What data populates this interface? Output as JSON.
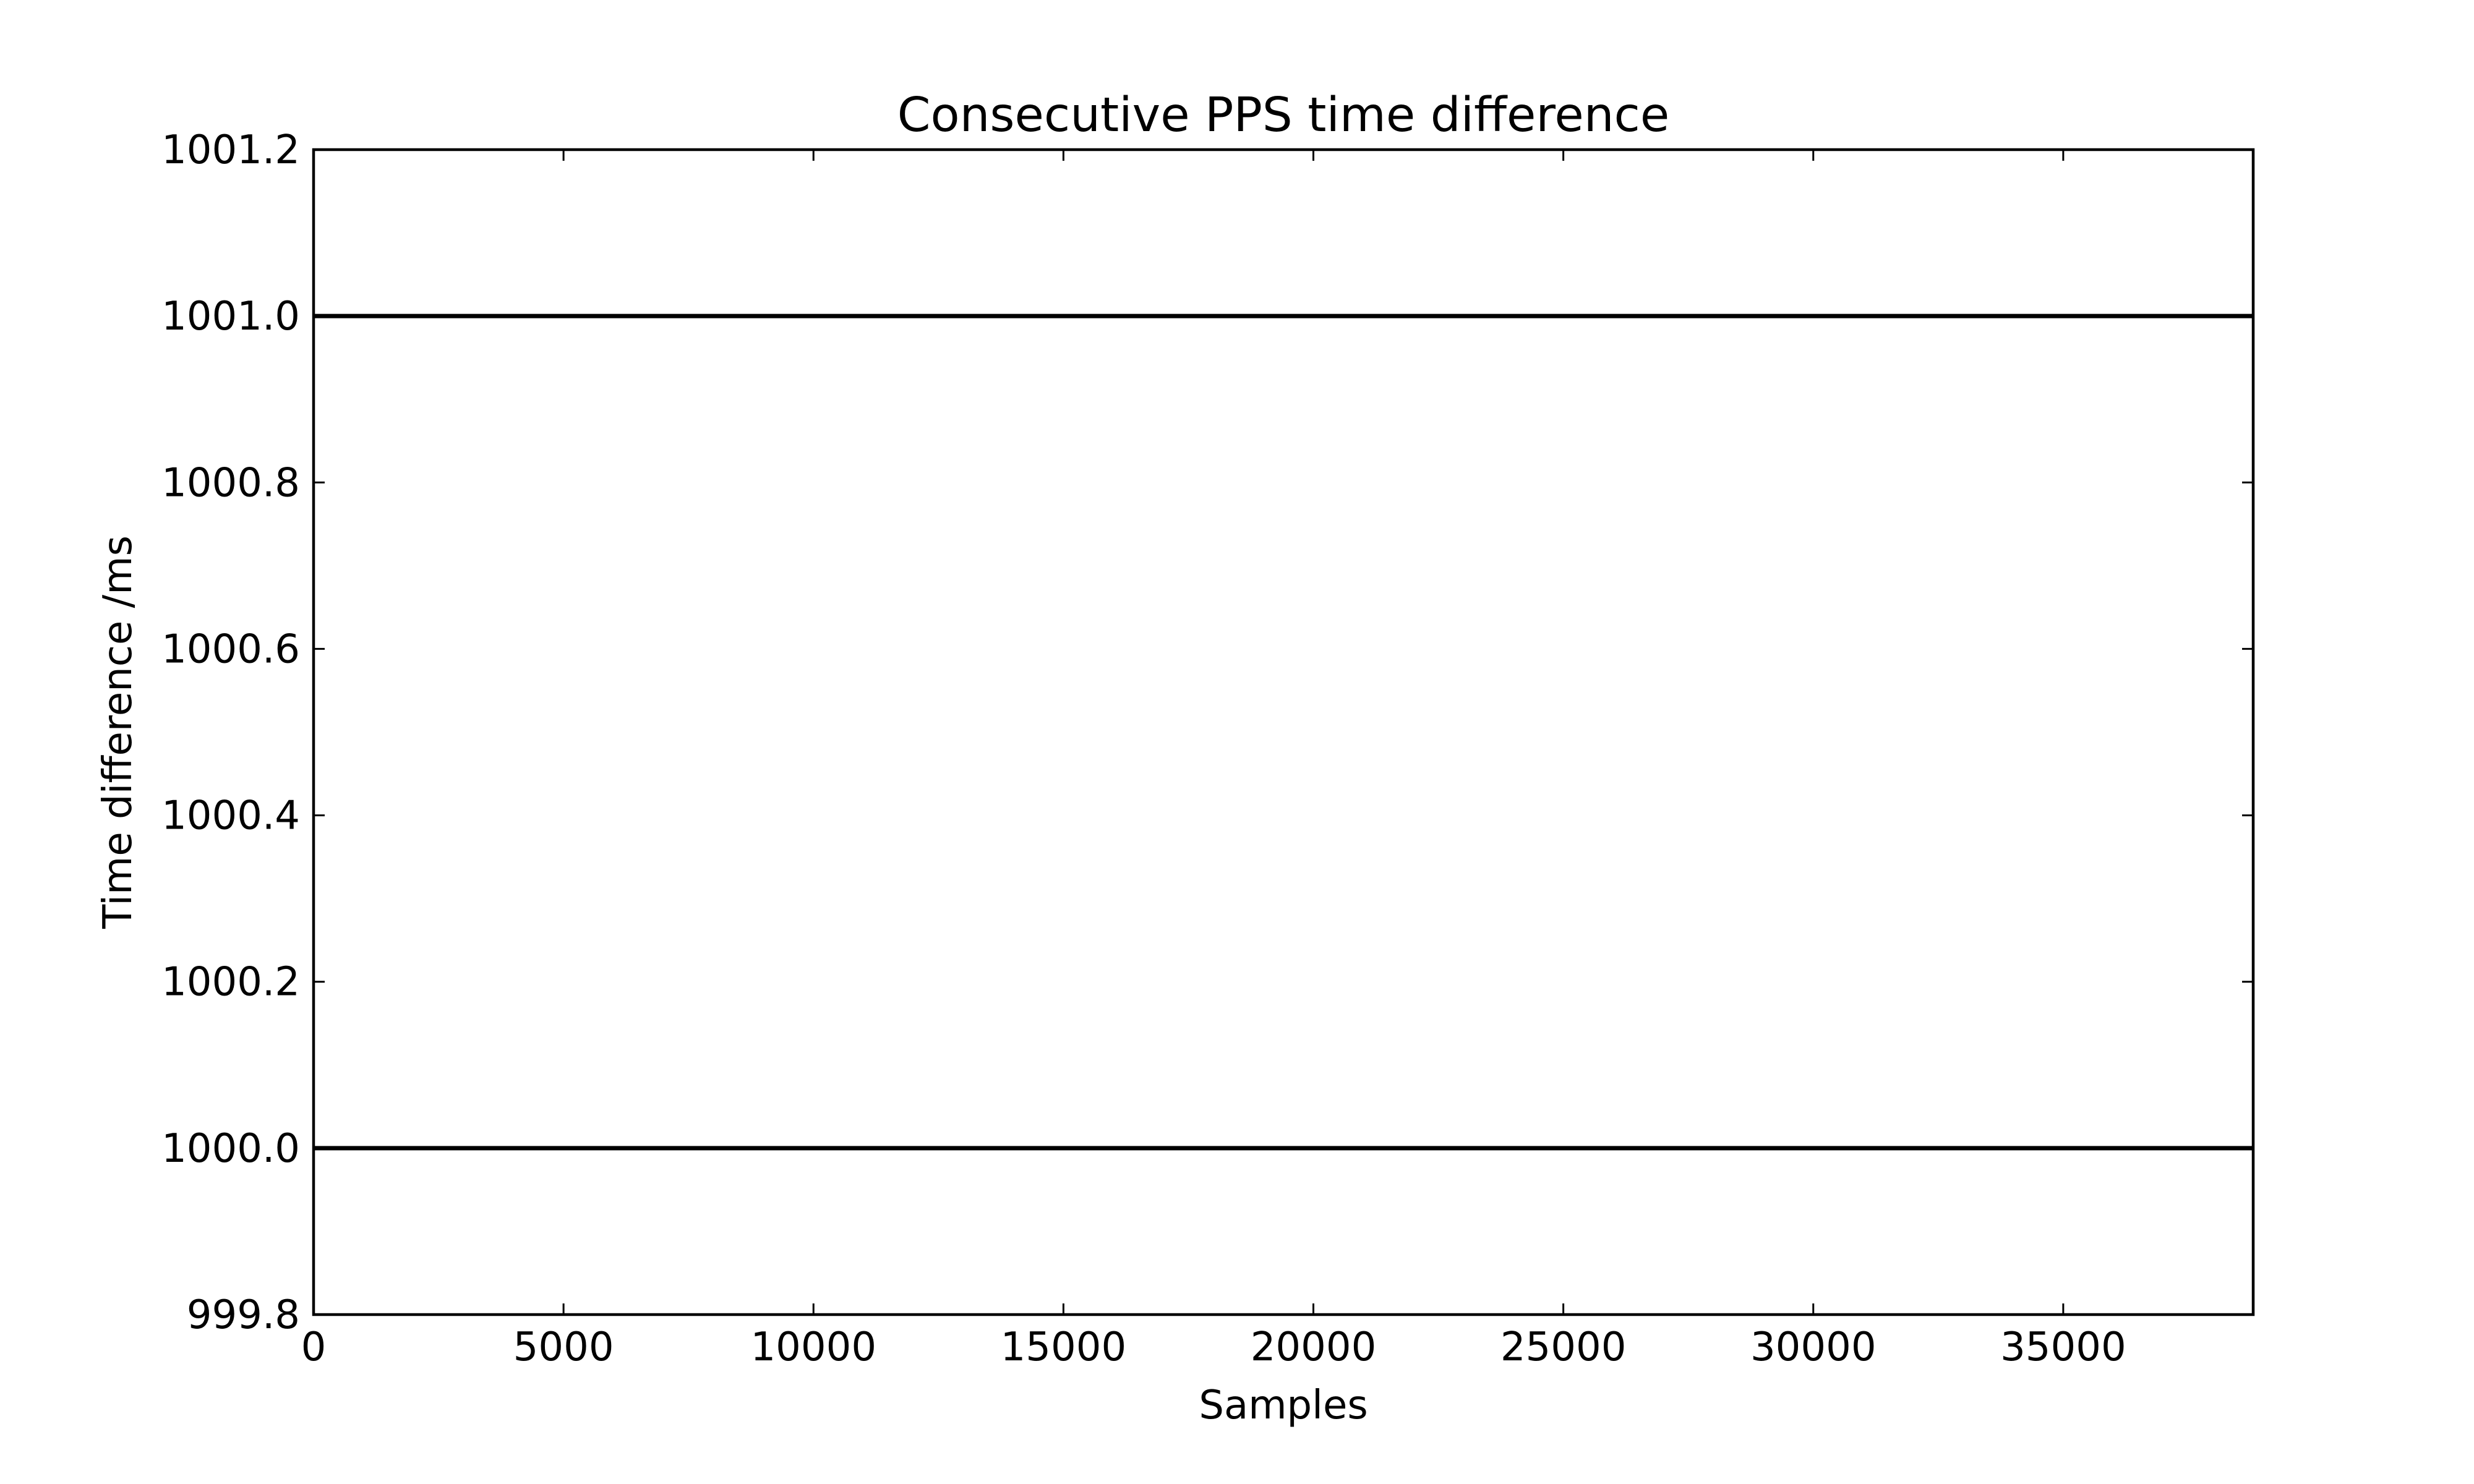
{
  "chart_data": {
    "type": "line",
    "title": "Consecutive PPS time difference",
    "xlabel": "Samples",
    "ylabel": "Time difference /ms",
    "xlim": [
      0,
      38800
    ],
    "ylim": [
      999.8,
      1001.2
    ],
    "xticks": [
      0,
      5000,
      10000,
      15000,
      20000,
      25000,
      30000,
      35000
    ],
    "xtick_labels": [
      "0",
      "5000",
      "10000",
      "15000",
      "20000",
      "25000",
      "30000",
      "35000"
    ],
    "yticks": [
      999.8,
      1000.0,
      1000.2,
      1000.4,
      1000.6,
      1000.8,
      1001.0,
      1001.2
    ],
    "ytick_labels": [
      "999.8",
      "1000.0",
      "1000.2",
      "1000.4",
      "1000.6",
      "1000.8",
      "1001.0",
      "1001.2"
    ],
    "grid": false,
    "series": [
      {
        "color": "#000000",
        "values": [
          {
            "x": 0,
            "y": 1000.0
          },
          {
            "x": 38800,
            "y": 1000.0
          },
          {
            "x": 0,
            "y": 1001.0
          },
          {
            "x": 38800,
            "y": 1001.0
          }
        ],
        "segments": [
          [
            [
              0,
              1000.0
            ],
            [
              38800,
              1000.0
            ]
          ],
          [
            [
              0,
              1001.0
            ],
            [
              38800,
              1001.0
            ]
          ]
        ]
      }
    ]
  }
}
